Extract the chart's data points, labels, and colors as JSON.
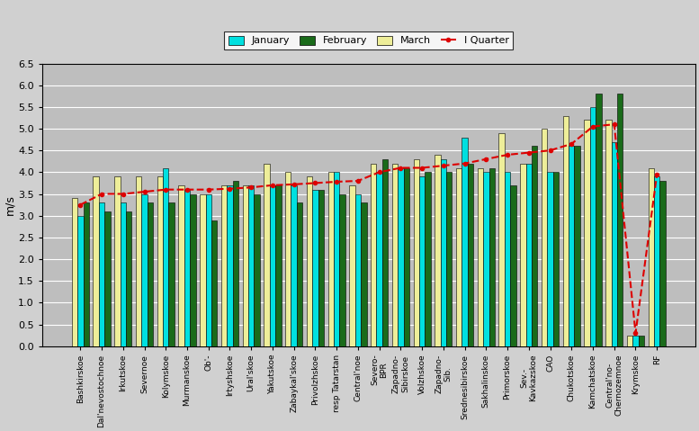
{
  "categories": [
    "Bashkirskoe",
    "Dal'nevostochnoe",
    "Irkutskoe",
    "Severnoe",
    "Kolymskoe",
    "Murmanskoe",
    "Ob'-",
    "Irtyshskoe",
    "Ural'skoe",
    "Yakutskoe",
    "Zabaykal'skoe",
    "Privolzhskoe",
    "resp Tatarstan",
    "Central'noe",
    "Severo-\nBPR",
    "Zapadno-\nSibirskoe",
    "Volzhskoe",
    "Zapadno-\nSib.",
    "Srednesibirskoe",
    "Sakhalinskoe",
    "Primorskoe",
    "Sev.-\nKavkazskoe",
    "CAO",
    "Chukotskoe",
    "Kamchatskoe",
    "Central'no-\nChernozemnoe",
    "Krymskoe",
    "RF"
  ],
  "january": [
    3.0,
    3.3,
    3.3,
    3.5,
    4.1,
    3.6,
    3.5,
    3.7,
    3.7,
    3.7,
    3.7,
    3.6,
    4.0,
    3.5,
    4.0,
    4.1,
    3.9,
    4.3,
    4.8,
    4.0,
    4.0,
    4.2,
    4.0,
    4.6,
    5.5,
    4.7,
    0.25,
    3.9
  ],
  "february": [
    3.3,
    3.1,
    3.1,
    3.3,
    3.3,
    3.5,
    2.9,
    3.8,
    3.5,
    3.7,
    3.3,
    3.6,
    3.5,
    3.3,
    4.3,
    4.1,
    4.0,
    4.0,
    4.2,
    4.1,
    3.7,
    4.6,
    4.0,
    4.6,
    5.8,
    5.8,
    0.25,
    3.8
  ],
  "march": [
    3.4,
    3.9,
    3.9,
    3.9,
    3.9,
    3.7,
    3.5,
    3.7,
    3.7,
    4.2,
    4.0,
    3.9,
    4.0,
    3.7,
    4.2,
    4.2,
    4.3,
    4.4,
    4.1,
    4.1,
    4.9,
    4.2,
    5.0,
    5.3,
    5.2,
    5.2,
    0.25,
    4.1
  ],
  "quarter": [
    3.25,
    3.5,
    3.5,
    3.55,
    3.6,
    3.6,
    3.6,
    3.62,
    3.65,
    3.7,
    3.72,
    3.75,
    3.78,
    3.8,
    4.0,
    4.1,
    4.1,
    4.15,
    4.2,
    4.3,
    4.4,
    4.45,
    4.5,
    4.65,
    5.05,
    5.1,
    0.3,
    3.95
  ],
  "bar_color_jan": "#00E0E0",
  "bar_color_feb": "#1A6B1A",
  "bar_color_mar": "#EEEE99",
  "line_color": "#DD0000",
  "plot_bg": "#BEBEBE",
  "fig_bg": "#D0D0D0",
  "ylabel": "m/s",
  "ylim": [
    0,
    6.5
  ],
  "yticks": [
    0,
    0.5,
    1.0,
    1.5,
    2.0,
    2.5,
    3.0,
    3.5,
    4.0,
    4.5,
    5.0,
    5.5,
    6.0,
    6.5
  ]
}
